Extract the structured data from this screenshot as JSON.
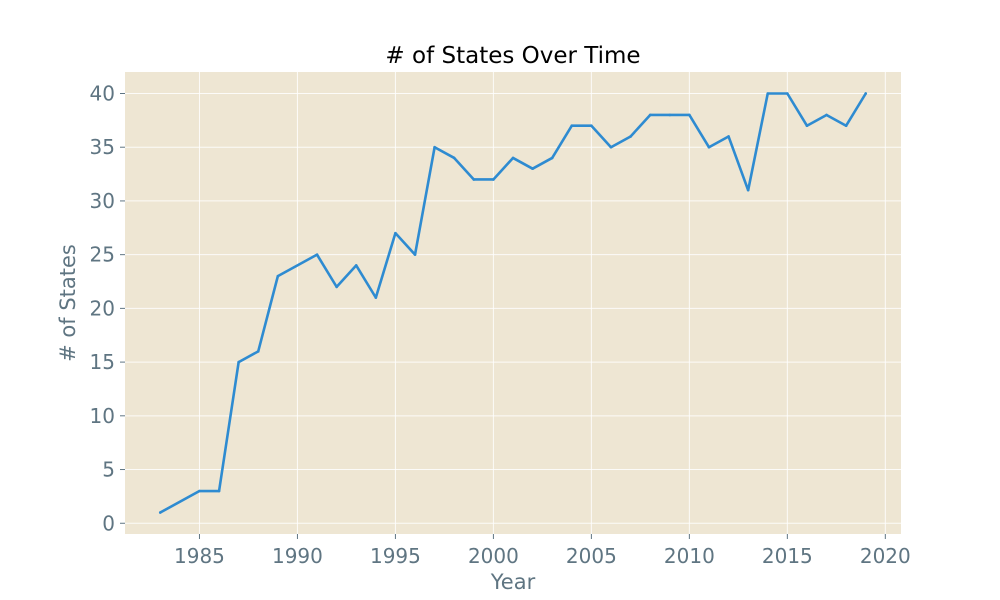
{
  "chart_data": {
    "type": "line",
    "title": "# of States Over Time",
    "xlabel": "Year",
    "ylabel": "# of States",
    "xlim": [
      1981.2,
      2020.8
    ],
    "ylim": [
      -1,
      42
    ],
    "x_ticks": [
      1985,
      1990,
      1995,
      2000,
      2005,
      2010,
      2015,
      2020
    ],
    "y_ticks": [
      0,
      5,
      10,
      15,
      20,
      25,
      30,
      35,
      40
    ],
    "grid": true,
    "legend": "none",
    "series": [
      {
        "x": [
          1983,
          1985,
          1986,
          1987,
          1988,
          1989,
          1991,
          1992,
          1993,
          1994,
          1995,
          1996,
          1997,
          1998,
          1999,
          2000,
          2001,
          2002,
          2003,
          2004,
          2005,
          2006,
          2007,
          2008,
          2009,
          2010,
          2011,
          2012,
          2013,
          2014,
          2015,
          2016,
          2017,
          2018,
          2019
        ],
        "values": [
          1,
          3,
          3,
          15,
          16,
          23,
          25,
          22,
          24,
          21,
          27,
          25,
          35,
          34,
          32,
          32,
          34,
          33,
          34,
          37,
          37,
          35,
          36,
          38,
          38,
          38,
          35,
          36,
          31,
          40,
          40,
          37,
          38,
          37,
          40
        ]
      }
    ]
  },
  "colors": {
    "plot_background": "#eee6d3",
    "series_line": "#2e8bd1",
    "tick_text": "#5f7582",
    "title_text": "#000000"
  }
}
